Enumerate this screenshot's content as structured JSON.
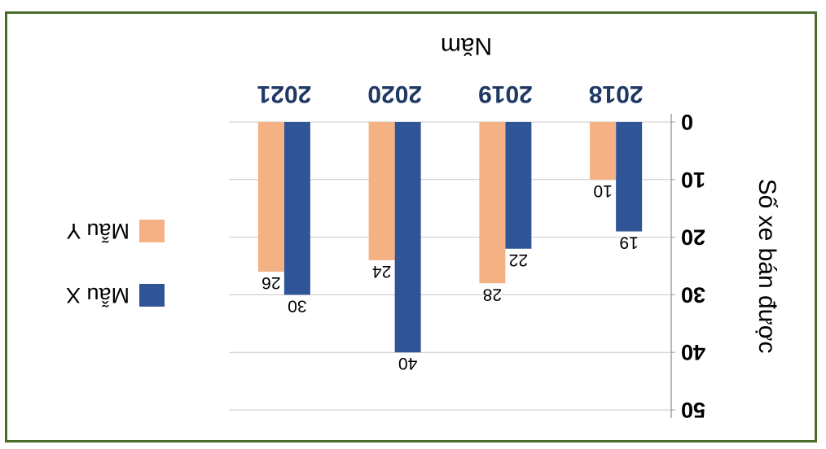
{
  "chart_data": {
    "type": "bar",
    "orientation": "vertical, image rotated 180 degrees",
    "title": "",
    "xlabel": "Năm",
    "ylabel": "Số xe bán được",
    "categories": [
      "2018",
      "2019",
      "2020",
      "2021"
    ],
    "series": [
      {
        "name": "Mẫu X",
        "values": [
          19,
          22,
          40,
          30
        ],
        "color": "#2f5597"
      },
      {
        "name": "Mẫu Y",
        "values": [
          10,
          28,
          24,
          26
        ],
        "color": "#f4b183"
      }
    ],
    "ylim": [
      0,
      50
    ],
    "yticks": [
      0,
      10,
      20,
      30,
      40,
      50
    ],
    "grid": true,
    "legend_position": "left"
  }
}
